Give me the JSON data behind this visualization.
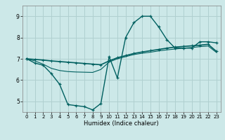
{
  "xlabel": "Humidex (Indice chaleur)",
  "bg_color": "#cce8e8",
  "grid_color": "#b0d0d0",
  "line_color": "#006060",
  "xlim": [
    -0.5,
    23.5
  ],
  "ylim": [
    4.5,
    9.5
  ],
  "yticks": [
    5,
    6,
    7,
    8,
    9
  ],
  "xticks": [
    0,
    1,
    2,
    3,
    4,
    5,
    6,
    7,
    8,
    9,
    10,
    11,
    12,
    13,
    14,
    15,
    16,
    17,
    18,
    19,
    20,
    21,
    22,
    23
  ],
  "curve1_x": [
    0,
    1,
    2,
    3,
    4,
    5,
    6,
    7,
    8,
    9,
    10,
    11,
    12,
    13,
    14,
    15,
    16,
    17,
    18,
    19,
    20,
    21,
    22,
    23
  ],
  "curve1_y": [
    7.0,
    6.8,
    6.7,
    6.3,
    5.8,
    4.85,
    4.8,
    4.75,
    4.6,
    4.9,
    7.1,
    6.1,
    8.0,
    8.7,
    9.0,
    9.0,
    8.5,
    7.9,
    7.5,
    7.5,
    7.5,
    7.8,
    7.8,
    7.75
  ],
  "curve2_x": [
    0,
    1,
    2,
    3,
    4,
    5,
    6,
    7,
    8,
    9,
    10,
    11,
    12,
    13,
    14,
    15,
    16,
    17,
    18,
    19,
    20,
    21,
    22,
    23
  ],
  "curve2_y": [
    7.0,
    6.97,
    6.94,
    6.9,
    6.87,
    6.84,
    6.81,
    6.78,
    6.75,
    6.72,
    6.9,
    7.05,
    7.15,
    7.25,
    7.32,
    7.38,
    7.44,
    7.5,
    7.55,
    7.58,
    7.61,
    7.64,
    7.68,
    7.35
  ],
  "curve3_x": [
    0,
    1,
    2,
    3,
    4,
    5,
    6,
    7,
    8,
    9,
    10,
    11,
    12,
    13,
    14,
    15,
    16,
    17,
    18,
    19,
    20,
    21,
    22,
    23
  ],
  "curve3_y": [
    7.0,
    6.9,
    6.75,
    6.55,
    6.45,
    6.4,
    6.38,
    6.37,
    6.36,
    6.5,
    6.85,
    7.0,
    7.1,
    7.2,
    7.26,
    7.31,
    7.37,
    7.42,
    7.46,
    7.5,
    7.53,
    7.57,
    7.6,
    7.3
  ]
}
